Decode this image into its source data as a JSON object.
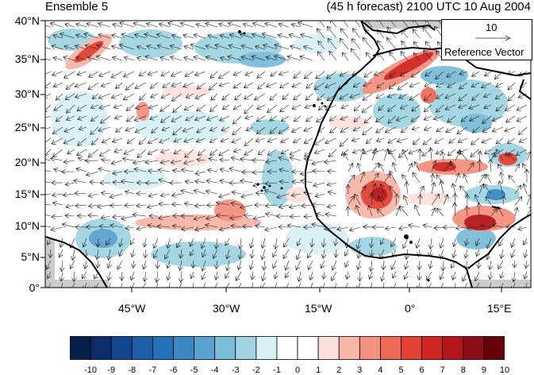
{
  "title_left": "Ensemble 5",
  "title_right": "(45 h forecast) 2100 UTC 10 Aug 2004",
  "lat_labels": [
    "40°N",
    "35°N",
    "30°N",
    "25°N",
    "20°N",
    "15°N",
    "10°N",
    "5°N",
    "0°"
  ],
  "lon_labels": [
    "45°W",
    "30°W",
    "15°W",
    "0°",
    "15°E"
  ],
  "reference_vector": {
    "value": "10",
    "label": "Reference Vector"
  },
  "colorbar": {
    "labels": [
      "-10",
      "-9",
      "-8",
      "-7",
      "-6",
      "-5",
      "-4",
      "-3",
      "-2",
      "-1",
      "0",
      "1",
      "2",
      "3",
      "4",
      "5",
      "6",
      "7",
      "8",
      "9",
      "10"
    ],
    "colors": [
      "#08214a",
      "#0b2e6b",
      "#12468e",
      "#1c5ea8",
      "#2571b8",
      "#3b88c4",
      "#5aa2cf",
      "#7bbcd9",
      "#a1d4e3",
      "#d8f0f7",
      "#ffffff",
      "#ffffff",
      "#fde0dc",
      "#f7b6a8",
      "#f4917f",
      "#ee6a55",
      "#e34133",
      "#d02622",
      "#b5161b",
      "#8c0d17",
      "#67000d"
    ]
  },
  "colors": {
    "land": "#000000",
    "missing": "#cccccc"
  }
}
